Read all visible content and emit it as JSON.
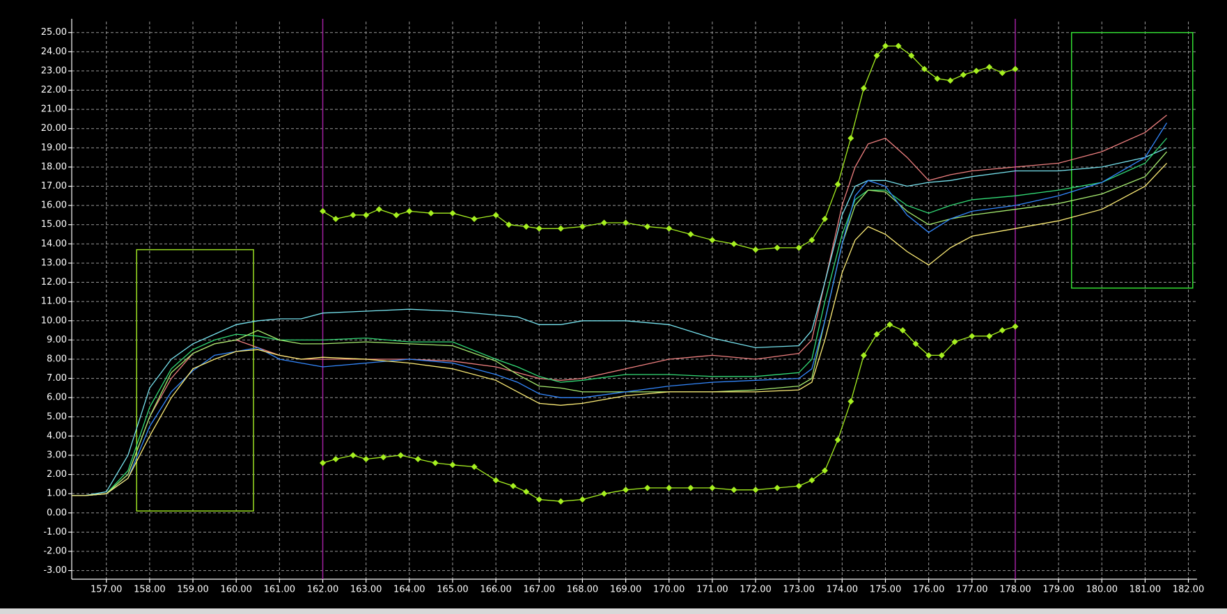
{
  "chart_data": {
    "type": "line",
    "xlim": [
      156.2,
      182.2
    ],
    "ylim": [
      -3.45,
      25.57
    ],
    "grid": true,
    "xticks": [
      {
        "value": 157,
        "label": "157.00"
      },
      {
        "value": 158,
        "label": "158.00"
      },
      {
        "value": 159,
        "label": "159.00"
      },
      {
        "value": 160,
        "label": "160.00"
      },
      {
        "value": 161,
        "label": "161.00"
      },
      {
        "value": 162,
        "label": "162.00"
      },
      {
        "value": 163,
        "label": "163.00"
      },
      {
        "value": 164,
        "label": "164.00"
      },
      {
        "value": 165,
        "label": "165.00"
      },
      {
        "value": 166,
        "label": "166.00"
      },
      {
        "value": 167,
        "label": "167.00"
      },
      {
        "value": 168,
        "label": "168.00"
      },
      {
        "value": 169,
        "label": "169.00"
      },
      {
        "value": 170,
        "label": "170.00"
      },
      {
        "value": 171,
        "label": "171.00"
      },
      {
        "value": 172,
        "label": "172.00"
      },
      {
        "value": 173,
        "label": "173.00"
      },
      {
        "value": 174,
        "label": "174.00"
      },
      {
        "value": 175,
        "label": "175.00"
      },
      {
        "value": 176,
        "label": "176.00"
      },
      {
        "value": 177,
        "label": "177.00"
      },
      {
        "value": 178,
        "label": "178.00"
      },
      {
        "value": 179,
        "label": "179.00"
      },
      {
        "value": 180,
        "label": "180.00"
      },
      {
        "value": 181,
        "label": "181.00"
      },
      {
        "value": 182,
        "label": "182.00"
      }
    ],
    "yticks": [
      {
        "value": 25,
        "label": "25.00"
      },
      {
        "value": 24,
        "label": "24.00"
      },
      {
        "value": 23,
        "label": "23.00"
      },
      {
        "value": 22,
        "label": "22.00"
      },
      {
        "value": 21,
        "label": "21.00"
      },
      {
        "value": 20,
        "label": "20.00"
      },
      {
        "value": 19,
        "label": "19.00"
      },
      {
        "value": 18,
        "label": "18.00"
      },
      {
        "value": 17,
        "label": "17.00"
      },
      {
        "value": 16,
        "label": "16.00"
      },
      {
        "value": 15,
        "label": "15.00"
      },
      {
        "value": 14,
        "label": "14.00"
      },
      {
        "value": 13,
        "label": "13.00"
      },
      {
        "value": 12,
        "label": "12.00"
      },
      {
        "value": 11,
        "label": "11.00"
      },
      {
        "value": 10,
        "label": "10.00"
      },
      {
        "value": 9,
        "label": "9.00"
      },
      {
        "value": 8,
        "label": "8.00"
      },
      {
        "value": 7,
        "label": "7.00"
      },
      {
        "value": 6,
        "label": "6.00"
      },
      {
        "value": 5,
        "label": "5.00"
      },
      {
        "value": 4,
        "label": "4.00"
      },
      {
        "value": 3,
        "label": "3.00"
      },
      {
        "value": 2,
        "label": "2.00"
      },
      {
        "value": 1,
        "label": "1.00"
      },
      {
        "value": 0,
        "label": "0.00"
      },
      {
        "value": -1,
        "label": "-1.00"
      },
      {
        "value": -2,
        "label": "-2.00"
      },
      {
        "value": -3,
        "label": "-3.00"
      }
    ],
    "x": [
      156.2,
      156.5,
      157,
      157.5,
      158,
      158.5,
      159,
      159.5,
      160,
      160.5,
      161,
      161.5,
      162,
      163,
      164,
      165,
      166,
      166.5,
      167,
      167.5,
      168,
      169,
      170,
      171,
      172,
      173,
      173.3,
      173.6,
      174,
      174.3,
      174.6,
      175,
      175.5,
      176,
      176.5,
      177,
      178,
      179,
      180,
      181,
      181.5
    ],
    "series": [
      {
        "color": "#f08080",
        "values": [
          0.9,
          0.9,
          1,
          2,
          5,
          7,
          8.3,
          8.8,
          9,
          8.6,
          8.2,
          8,
          8,
          8,
          8,
          7.9,
          7.6,
          7.3,
          7,
          6.9,
          7,
          7.5,
          8,
          8.2,
          8,
          8.3,
          9,
          12,
          16,
          18,
          19.2,
          19.5,
          18.5,
          17.3,
          17.6,
          17.8,
          18,
          18.2,
          18.8,
          19.8,
          20.7
        ]
      },
      {
        "color": "#77e4f0",
        "values": [
          0.9,
          0.9,
          1.1,
          3,
          6.5,
          8,
          8.8,
          9.3,
          9.8,
          10,
          10.1,
          10.1,
          10.4,
          10.5,
          10.6,
          10.5,
          10.3,
          10.2,
          9.8,
          9.8,
          10,
          10,
          9.8,
          9.1,
          8.6,
          8.7,
          9.5,
          12,
          15.5,
          17,
          17.3,
          17.3,
          17,
          17.2,
          17.3,
          17.5,
          17.8,
          17.8,
          18,
          18.5,
          19
        ]
      },
      {
        "color": "#33dd77",
        "values": [
          0.9,
          0.9,
          1,
          2.2,
          5.5,
          7.5,
          8.5,
          9,
          9.3,
          9.2,
          9,
          9,
          9,
          9.1,
          8.9,
          8.9,
          8,
          7.6,
          7.1,
          6.8,
          6.9,
          7.2,
          7.2,
          7.1,
          7.1,
          7.3,
          8,
          11,
          14.5,
          16.3,
          16.8,
          16.8,
          16,
          15.6,
          16,
          16.3,
          16.5,
          16.8,
          17.2,
          18.2,
          19.5
        ]
      },
      {
        "color": "#a8ee70",
        "values": [
          0.9,
          0.9,
          1,
          2,
          5,
          7.3,
          8.3,
          8.8,
          9,
          9.5,
          9,
          8.8,
          8.8,
          8.9,
          8.8,
          8.7,
          7.9,
          7.2,
          6.6,
          6.5,
          6.3,
          6.3,
          6.3,
          6.3,
          6.4,
          6.6,
          7,
          10,
          14,
          16,
          16.8,
          16.7,
          15.7,
          15,
          15.3,
          15.5,
          15.8,
          16.1,
          16.6,
          17.5,
          18.8
        ]
      },
      {
        "color": "#3388ff",
        "values": [
          0.9,
          0.9,
          1,
          1.8,
          4.5,
          6.3,
          7.4,
          8.2,
          8.4,
          8.6,
          8,
          7.8,
          7.6,
          7.8,
          8,
          7.8,
          7.2,
          6.8,
          6.2,
          6,
          6,
          6.3,
          6.6,
          6.8,
          6.9,
          7,
          7.5,
          10,
          14,
          16.5,
          17.3,
          17,
          15.5,
          14.6,
          15.3,
          15.7,
          16,
          16.5,
          17.2,
          18.5,
          20.3
        ]
      },
      {
        "color": "#ffee77",
        "values": [
          0.9,
          0.9,
          1,
          1.8,
          4,
          6,
          7.5,
          8,
          8.4,
          8.5,
          8.2,
          8,
          8.1,
          8,
          7.8,
          7.5,
          6.9,
          6.3,
          5.7,
          5.6,
          5.7,
          6.1,
          6.3,
          6.3,
          6.3,
          6.4,
          6.8,
          9,
          12.5,
          14.2,
          14.9,
          14.5,
          13.6,
          12.9,
          13.8,
          14.4,
          14.8,
          15.2,
          15.8,
          17,
          18.2
        ]
      }
    ],
    "limits": [
      {
        "color": "#a6f020",
        "x": [
          162,
          162.3,
          162.7,
          163,
          163.3,
          163.7,
          164,
          164.5,
          165,
          165.5,
          166,
          166.3,
          166.7,
          167,
          167.5,
          168,
          168.5,
          169,
          169.5,
          170,
          170.5,
          171,
          171.5,
          172,
          172.5,
          173,
          173.3,
          173.6,
          173.9,
          174.2,
          174.5,
          174.8,
          175,
          175.3,
          175.6,
          175.9,
          176.2,
          176.5,
          176.8,
          177.1,
          177.4,
          177.7,
          178
        ],
        "values": [
          15.7,
          15.3,
          15.5,
          15.5,
          15.8,
          15.5,
          15.7,
          15.6,
          15.6,
          15.3,
          15.5,
          15,
          14.9,
          14.8,
          14.8,
          14.9,
          15.1,
          15.1,
          14.9,
          14.8,
          14.5,
          14.2,
          14,
          13.7,
          13.8,
          13.8,
          14.2,
          15.3,
          17.1,
          19.5,
          22.1,
          23.8,
          24.3,
          24.3,
          23.8,
          23.1,
          22.6,
          22.5,
          22.8,
          23,
          23.2,
          22.9,
          23.1
        ]
      },
      {
        "color": "#a6f020",
        "x": [
          162,
          162.3,
          162.7,
          163,
          163.4,
          163.8,
          164.2,
          164.6,
          165,
          165.5,
          166,
          166.4,
          166.7,
          167,
          167.5,
          168,
          168.5,
          169,
          169.5,
          170,
          170.5,
          171,
          171.5,
          172,
          172.5,
          173,
          173.3,
          173.6,
          173.9,
          174.2,
          174.5,
          174.8,
          175.1,
          175.4,
          175.7,
          176,
          176.3,
          176.6,
          177,
          177.4,
          177.7,
          178
        ],
        "values": [
          2.6,
          2.8,
          3,
          2.8,
          2.9,
          3,
          2.8,
          2.6,
          2.5,
          2.4,
          1.7,
          1.4,
          1.1,
          0.7,
          0.6,
          0.7,
          1,
          1.2,
          1.3,
          1.3,
          1.3,
          1.3,
          1.2,
          1.2,
          1.3,
          1.4,
          1.7,
          2.2,
          3.8,
          5.8,
          8.2,
          9.3,
          9.8,
          9.5,
          8.8,
          8.2,
          8.2,
          8.9,
          9.2,
          9.2,
          9.5,
          9.7
        ]
      }
    ],
    "vlines": {
      "color": "#a020a0",
      "values": [
        162,
        178
      ]
    },
    "boxes": [
      {
        "color": "#99dd22",
        "x": [
          157.7,
          160.4
        ],
        "y": [
          0.1,
          13.7
        ]
      },
      {
        "color": "#33dd33",
        "x": [
          179.3,
          182.1
        ],
        "y": [
          11.7,
          25.0
        ]
      }
    ]
  }
}
